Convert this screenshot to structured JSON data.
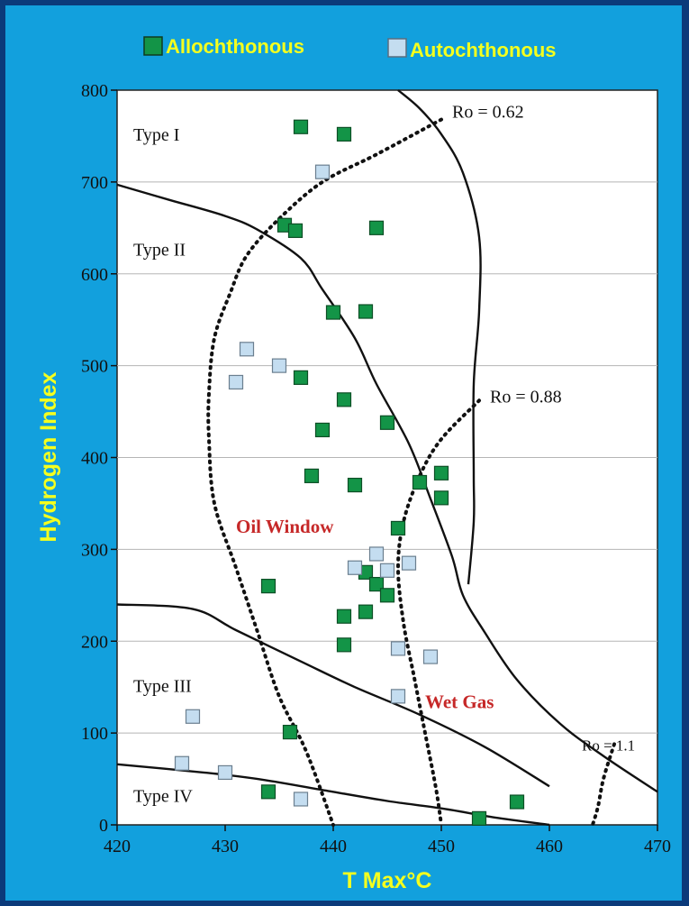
{
  "colors": {
    "background": "#12a0dd",
    "border": "#0b3a7a",
    "label_yellow": "#f5ff1e",
    "allochthonous": "#139447",
    "autochthonous": "#c4ddf0",
    "red_text": "#c62828"
  },
  "chart_data": {
    "type": "scatter",
    "xlabel": "T Max°C",
    "ylabel": "Hydrogen Index",
    "xlim": [
      420,
      470
    ],
    "ylim": [
      0,
      800
    ],
    "xticks": [
      420,
      430,
      440,
      450,
      460,
      470
    ],
    "yticks": [
      0,
      100,
      200,
      300,
      400,
      500,
      600,
      700,
      800
    ],
    "grid": "horizontal",
    "legend": {
      "placement": "top"
    },
    "series": [
      {
        "name": "Allochthonous",
        "marker": "square",
        "color": "#139447",
        "points": [
          [
            437,
            760
          ],
          [
            441,
            752
          ],
          [
            435.5,
            653
          ],
          [
            436.5,
            647
          ],
          [
            444,
            650
          ],
          [
            440,
            558
          ],
          [
            443,
            559
          ],
          [
            437,
            487
          ],
          [
            441,
            463
          ],
          [
            445,
            438
          ],
          [
            439,
            430
          ],
          [
            438,
            380
          ],
          [
            442,
            370
          ],
          [
            448,
            373
          ],
          [
            450,
            383
          ],
          [
            450,
            356
          ],
          [
            446,
            323
          ],
          [
            434,
            260
          ],
          [
            443,
            275
          ],
          [
            444,
            262
          ],
          [
            445,
            250
          ],
          [
            441,
            227
          ],
          [
            443,
            232
          ],
          [
            441,
            196
          ],
          [
            436,
            101
          ],
          [
            434,
            36
          ],
          [
            453.5,
            7
          ],
          [
            457,
            25
          ]
        ]
      },
      {
        "name": "Autochthonous",
        "marker": "square",
        "color": "#c4ddf0",
        "points": [
          [
            439,
            711
          ],
          [
            432,
            518
          ],
          [
            435,
            500
          ],
          [
            431,
            482
          ],
          [
            444,
            295
          ],
          [
            442,
            280
          ],
          [
            445,
            277
          ],
          [
            447,
            285
          ],
          [
            446,
            192
          ],
          [
            449,
            183
          ],
          [
            446,
            140
          ],
          [
            427,
            118
          ],
          [
            426,
            67
          ],
          [
            430,
            57
          ],
          [
            437,
            28
          ]
        ]
      }
    ],
    "boundaries": [
      {
        "points": [
          [
            420,
            697
          ],
          [
            425,
            680
          ],
          [
            430,
            663
          ],
          [
            433,
            648
          ],
          [
            437,
            617
          ],
          [
            439,
            583
          ],
          [
            442,
            530
          ],
          [
            444,
            480
          ],
          [
            447,
            415
          ],
          [
            449,
            355
          ],
          [
            451,
            292
          ],
          [
            452,
            250
          ],
          [
            454,
            210
          ],
          [
            457,
            158
          ],
          [
            461,
            110
          ],
          [
            465,
            75
          ],
          [
            470,
            36
          ]
        ]
      },
      {
        "points": [
          [
            446,
            800
          ],
          [
            448,
            780
          ],
          [
            450,
            752
          ],
          [
            452,
            710
          ],
          [
            453.5,
            640
          ],
          [
            453.5,
            560
          ],
          [
            453,
            480
          ],
          [
            453,
            380
          ],
          [
            453,
            330
          ],
          [
            452.5,
            262
          ]
        ]
      },
      {
        "points": [
          [
            420,
            240
          ],
          [
            427,
            235
          ],
          [
            431,
            212
          ],
          [
            437,
            178
          ],
          [
            442,
            150
          ],
          [
            448,
            120
          ],
          [
            454,
            85
          ],
          [
            460,
            42
          ]
        ]
      },
      {
        "points": [
          [
            420,
            66
          ],
          [
            428,
            57
          ],
          [
            433,
            50
          ],
          [
            439,
            38
          ],
          [
            445,
            26
          ],
          [
            450,
            18
          ],
          [
            455,
            8
          ],
          [
            460,
            0
          ]
        ]
      }
    ],
    "isolines": [
      {
        "label": "Ro = 0.62",
        "points": [
          [
            450,
            768
          ],
          [
            444,
            730
          ],
          [
            439,
            700
          ],
          [
            435,
            660
          ],
          [
            432,
            620
          ],
          [
            430.5,
            580
          ],
          [
            429,
            530
          ],
          [
            428.5,
            470
          ],
          [
            428.5,
            420
          ],
          [
            429,
            350
          ],
          [
            431,
            280
          ],
          [
            433,
            210
          ],
          [
            435,
            140
          ],
          [
            437.5,
            80
          ],
          [
            440,
            0
          ]
        ]
      },
      {
        "label": "Ro = 0.88",
        "points": [
          [
            453.5,
            462
          ],
          [
            450,
            420
          ],
          [
            448,
            380
          ],
          [
            446.5,
            330
          ],
          [
            446,
            280
          ],
          [
            446.5,
            220
          ],
          [
            447.5,
            160
          ],
          [
            448.5,
            100
          ],
          [
            449.5,
            40
          ],
          [
            450,
            0
          ]
        ]
      },
      {
        "label": "Ro = 1.1",
        "points": [
          [
            466,
            88
          ],
          [
            465,
            50
          ],
          [
            464.5,
            20
          ],
          [
            464,
            0
          ]
        ]
      }
    ],
    "region_labels": [
      {
        "text": "Type I",
        "x": 421.5,
        "y": 745,
        "style": "plain"
      },
      {
        "text": "Type II",
        "x": 421.5,
        "y": 620,
        "style": "plain"
      },
      {
        "text": "Type III",
        "x": 421.5,
        "y": 145,
        "style": "plain"
      },
      {
        "text": "Type IV",
        "x": 421.5,
        "y": 25,
        "style": "plain"
      },
      {
        "text": "Oil Window",
        "x": 431,
        "y": 318,
        "style": "red"
      },
      {
        "text": "Wet Gas",
        "x": 448.5,
        "y": 127,
        "style": "red"
      }
    ],
    "ro_labels": [
      {
        "text": "Ro = 0.62",
        "x": 451,
        "y": 770,
        "size": "normal"
      },
      {
        "text": "Ro = 0.88",
        "x": 454.5,
        "y": 460,
        "size": "normal"
      },
      {
        "text": "Ro = 1.1",
        "x": 463,
        "y": 81,
        "size": "small"
      }
    ]
  }
}
